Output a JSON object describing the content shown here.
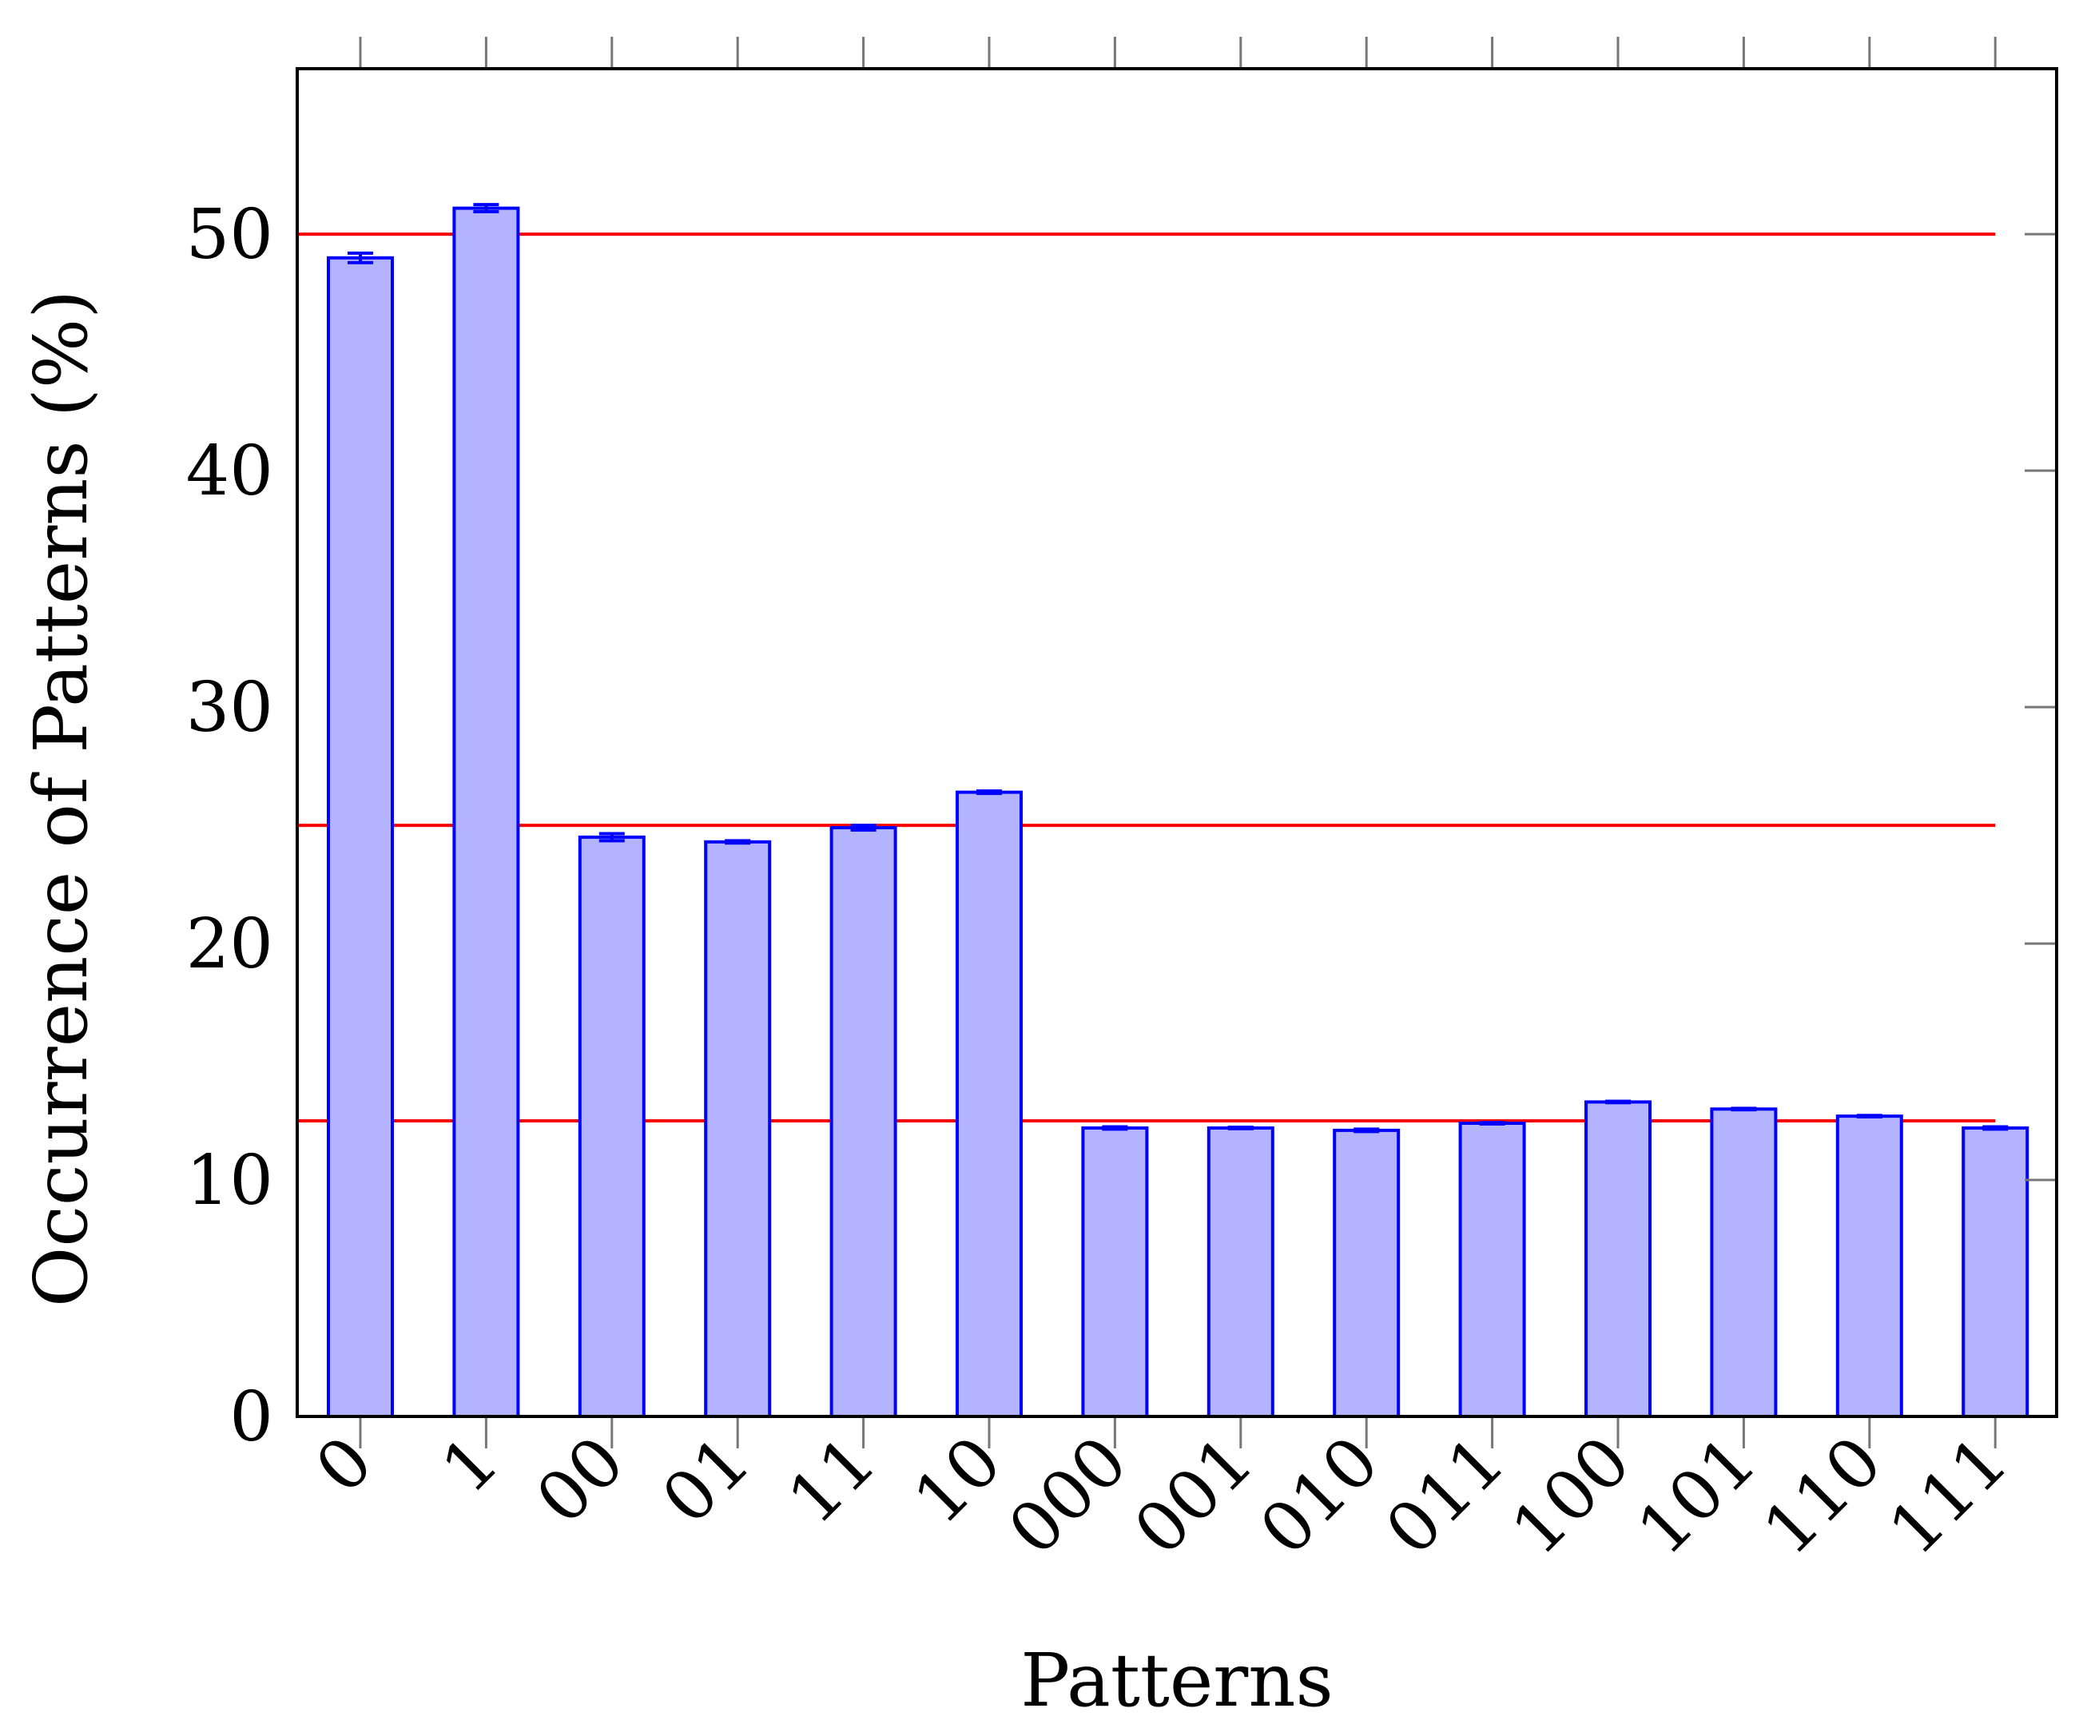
{
  "chart_data": {
    "type": "bar",
    "title": "",
    "xlabel": "Patterns",
    "ylabel": "Occurrence of Patterns (%)",
    "categories": [
      "0",
      "1",
      "00",
      "01",
      "11",
      "10",
      "000",
      "001",
      "010",
      "011",
      "100",
      "101",
      "110",
      "111"
    ],
    "values": [
      49.0,
      51.1,
      24.5,
      24.3,
      24.9,
      26.4,
      12.2,
      12.2,
      12.1,
      12.4,
      13.3,
      13.0,
      12.7,
      12.2
    ],
    "errors": [
      0.2,
      0.15,
      0.15,
      0.05,
      0.1,
      0.05,
      0.05,
      0.03,
      0.05,
      0.03,
      0.03,
      0.03,
      0.03,
      0.05
    ],
    "ylim": [
      0,
      57
    ],
    "yticks": [
      0,
      10,
      20,
      30,
      40,
      50
    ],
    "reference_lines": [
      50,
      25,
      12.5
    ],
    "grid": false,
    "colors": {
      "bar_fill": "#b3b3ff",
      "bar_stroke": "#0000ff",
      "reference_line": "#ff0000",
      "tick": "#777777"
    }
  }
}
